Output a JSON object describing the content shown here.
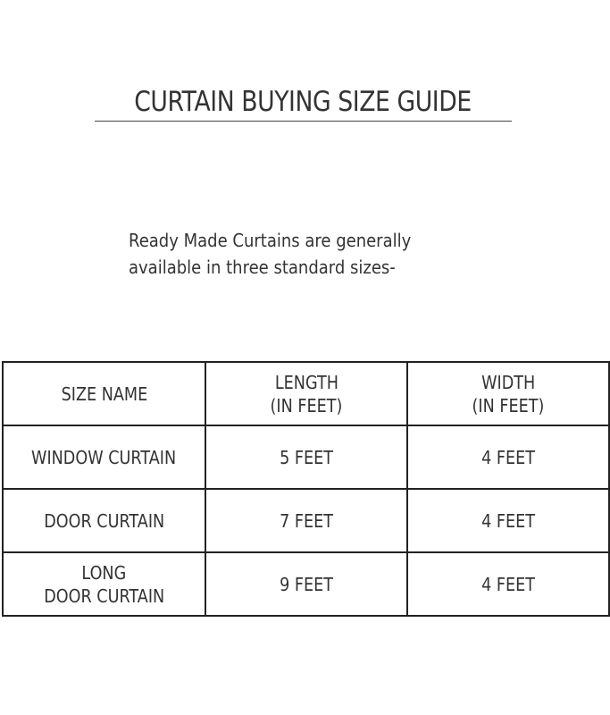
{
  "title": "CURTAIN BUYING SIZE GUIDE",
  "intro": {
    "line1": "Ready Made Curtains are generally",
    "line2": "available in three standard sizes-"
  },
  "table": {
    "headers": [
      {
        "line1": "SIZE NAME",
        "line2": ""
      },
      {
        "line1": "LENGTH",
        "line2": "(IN FEET)"
      },
      {
        "line1": "WIDTH",
        "line2": "(IN FEET)"
      }
    ],
    "rows": [
      {
        "name_line1": "WINDOW CURTAIN",
        "name_line2": "",
        "length": "5 FEET",
        "width": "4 FEET"
      },
      {
        "name_line1": "DOOR CURTAIN",
        "name_line2": "",
        "length": "7 FEET",
        "width": "4 FEET"
      },
      {
        "name_line1": "LONG",
        "name_line2": "DOOR CURTAIN",
        "length": "9 FEET",
        "width": "4 FEET"
      }
    ]
  }
}
